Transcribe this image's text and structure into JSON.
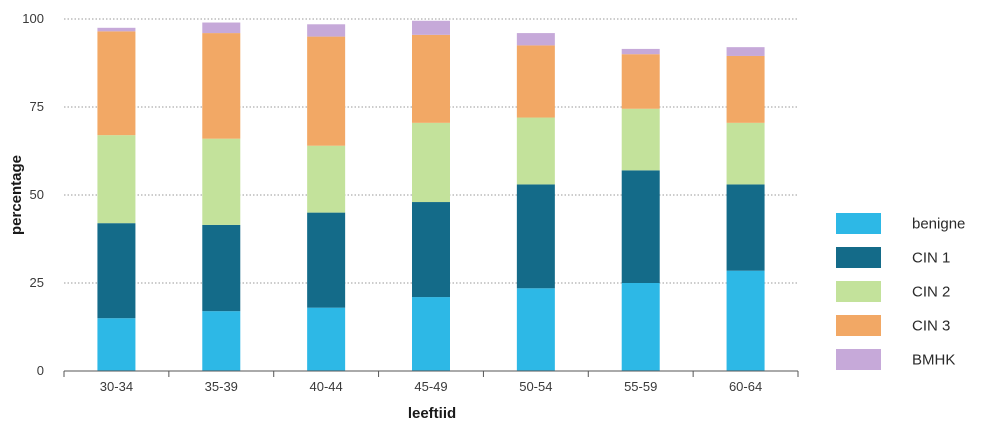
{
  "chart_data": {
    "type": "bar",
    "stacked": true,
    "title": "",
    "xlabel": "leeftiid",
    "ylabel": "percentage",
    "ylim": [
      0,
      100
    ],
    "yticks": [
      0,
      25,
      50,
      75,
      100
    ],
    "grid": "horizontal dotted",
    "legend_position": "right",
    "categories": [
      "30-34",
      "35-39",
      "40-44",
      "45-49",
      "50-54",
      "55-59",
      "60-64"
    ],
    "series": [
      {
        "name": "benigne",
        "color": "#2db8e6",
        "values": [
          15,
          17,
          18,
          21,
          23.5,
          25,
          28.5
        ]
      },
      {
        "name": "CIN 1",
        "color": "#146b89",
        "values": [
          27,
          24.5,
          27,
          27,
          29.5,
          32,
          24.5
        ]
      },
      {
        "name": "CIN 2",
        "color": "#c3e29b",
        "values": [
          25,
          24.5,
          19,
          22.5,
          19,
          17.5,
          17.5
        ]
      },
      {
        "name": "CIN 3",
        "color": "#f2a865",
        "values": [
          29.5,
          30,
          31,
          25,
          20.5,
          15.5,
          19
        ]
      },
      {
        "name": "BMHK",
        "color": "#c6a9d9",
        "values": [
          1,
          3,
          3.5,
          4,
          3.5,
          1.5,
          2.5
        ]
      }
    ]
  }
}
